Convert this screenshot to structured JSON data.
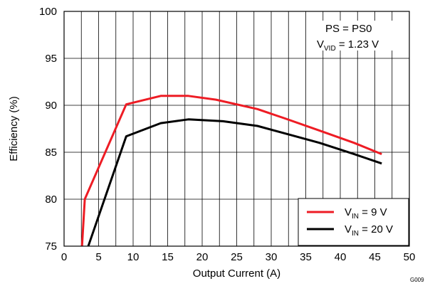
{
  "chart_data": {
    "type": "line",
    "xlabel": "Output Current (A)",
    "ylabel": "Efficiency (%)",
    "xlim": [
      0,
      50
    ],
    "ylim": [
      75,
      100
    ],
    "x_ticks": [
      "0",
      "5",
      "10",
      "15",
      "20",
      "25",
      "30",
      "35",
      "40",
      "45",
      "50"
    ],
    "y_ticks": [
      "75",
      "80",
      "85",
      "90",
      "95",
      "100"
    ],
    "grid": true,
    "legend_position": "bottom-right",
    "annotation": {
      "line1": "PS = PS0",
      "line2_main": "V",
      "line2_sub": "VID",
      "line2_rest": " = 1.23 V"
    },
    "figure_id": "G009",
    "series": [
      {
        "name_main": "V",
        "name_sub": "IN",
        "name_rest": " = 9 V",
        "color": "#ee1c24",
        "x": [
          2.6,
          3.0,
          9.0,
          14.0,
          18.0,
          22.0,
          28.0,
          32.0,
          37.0,
          42.0,
          46.0
        ],
        "y": [
          75.0,
          80.0,
          90.1,
          91.0,
          91.0,
          90.6,
          89.6,
          88.6,
          87.3,
          86.0,
          84.8
        ]
      },
      {
        "name_main": "V",
        "name_sub": "IN",
        "name_rest": " = 20 V",
        "color": "#000000",
        "x": [
          3.5,
          9.0,
          14.0,
          18.0,
          23.0,
          28.0,
          32.0,
          37.0,
          42.0,
          46.0
        ],
        "y": [
          75.0,
          86.7,
          88.1,
          88.5,
          88.3,
          87.8,
          87.0,
          86.0,
          84.8,
          83.8
        ]
      }
    ]
  }
}
